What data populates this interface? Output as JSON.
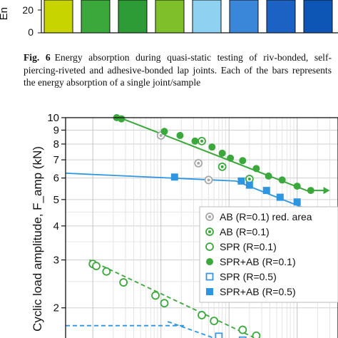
{
  "top_chart": {
    "ylabel": "En",
    "y_ticks": [
      "20",
      "0"
    ],
    "bar_colors": [
      "#c8d400",
      "#3aa83a",
      "#2e9c36",
      "#7fbf2a",
      "#8fd1f0",
      "#3a86d8",
      "#1b62c4",
      "#0d56b5"
    ]
  },
  "caption": {
    "label": "Fig. 6",
    "text": "Energy absorption during quasi-static testing of riv-bonded, self-piercing-riveted and adhesive-bonded lap joints. Each of the bars represents the energy absorption of a single joint/sample"
  },
  "chart_data": {
    "type": "scatter",
    "ylabel": "Cyclic load amplitude, F_amp (kN)",
    "y_scale": "log",
    "ylim": [
      1.45,
      10
    ],
    "y_tick_labels": [
      "10",
      "9",
      "8",
      "7",
      "6",
      "5",
      "4",
      "3",
      "2"
    ],
    "x_tick_labels": [],
    "grid": true,
    "legend_position": "right",
    "series": [
      {
        "name": "AB (R=0.1) red. area",
        "marker": "open-circle-dot",
        "color": "#a8a8a8",
        "points": [
          [
            1.0,
            8.6
          ],
          [
            1.55,
            6.8
          ],
          [
            1.7,
            5.9
          ]
        ]
      },
      {
        "name": "AB (R=0.1)",
        "marker": "circle-dot",
        "color": "#3aa83a",
        "points": [
          [
            2.3,
            5.95
          ],
          [
            1.6,
            8.2
          ],
          [
            1.9,
            6.6
          ]
        ]
      },
      {
        "name": "SPR (R=0.1)",
        "marker": "open-circle",
        "color": "#3aa83a",
        "points": [
          [
            0.0,
            2.9
          ],
          [
            0.05,
            2.85
          ],
          [
            0.2,
            2.72
          ],
          [
            0.45,
            2.48
          ],
          [
            0.92,
            2.22
          ],
          [
            1.05,
            2.08
          ],
          [
            1.6,
            1.88
          ],
          [
            1.78,
            1.79
          ],
          [
            2.2,
            1.66
          ],
          [
            2.4,
            1.58
          ]
        ]
      },
      {
        "name": "SPR+AB (R=0.1)",
        "marker": "filled-circle",
        "color": "#3aa83a",
        "points": [
          [
            0.35,
            10.0
          ],
          [
            0.42,
            9.9
          ],
          [
            1.05,
            8.9
          ],
          [
            1.28,
            8.6
          ],
          [
            1.5,
            8.2
          ],
          [
            1.75,
            7.8
          ],
          [
            1.9,
            7.4
          ],
          [
            2.02,
            7.1
          ],
          [
            2.2,
            6.95
          ],
          [
            2.4,
            6.5
          ],
          [
            2.58,
            6.1
          ],
          [
            2.78,
            5.9
          ],
          [
            3.0,
            5.6
          ],
          [
            3.2,
            5.4
          ]
        ]
      },
      {
        "name": "SPR (R=0.5)",
        "marker": "open-square",
        "color": "#3a96e0",
        "points": [
          [
            1.85,
            1.57
          ],
          [
            2.2,
            1.52
          ]
        ]
      },
      {
        "name": "SPR+AB (R=0.5)",
        "marker": "filled-square",
        "color": "#2e96e0",
        "points": [
          [
            1.2,
            6.05
          ],
          [
            2.18,
            5.85
          ],
          [
            2.3,
            5.65
          ],
          [
            2.55,
            5.4
          ],
          [
            2.75,
            5.1
          ],
          [
            3.0,
            4.9
          ],
          [
            3.25,
            4.55
          ]
        ]
      }
    ]
  }
}
